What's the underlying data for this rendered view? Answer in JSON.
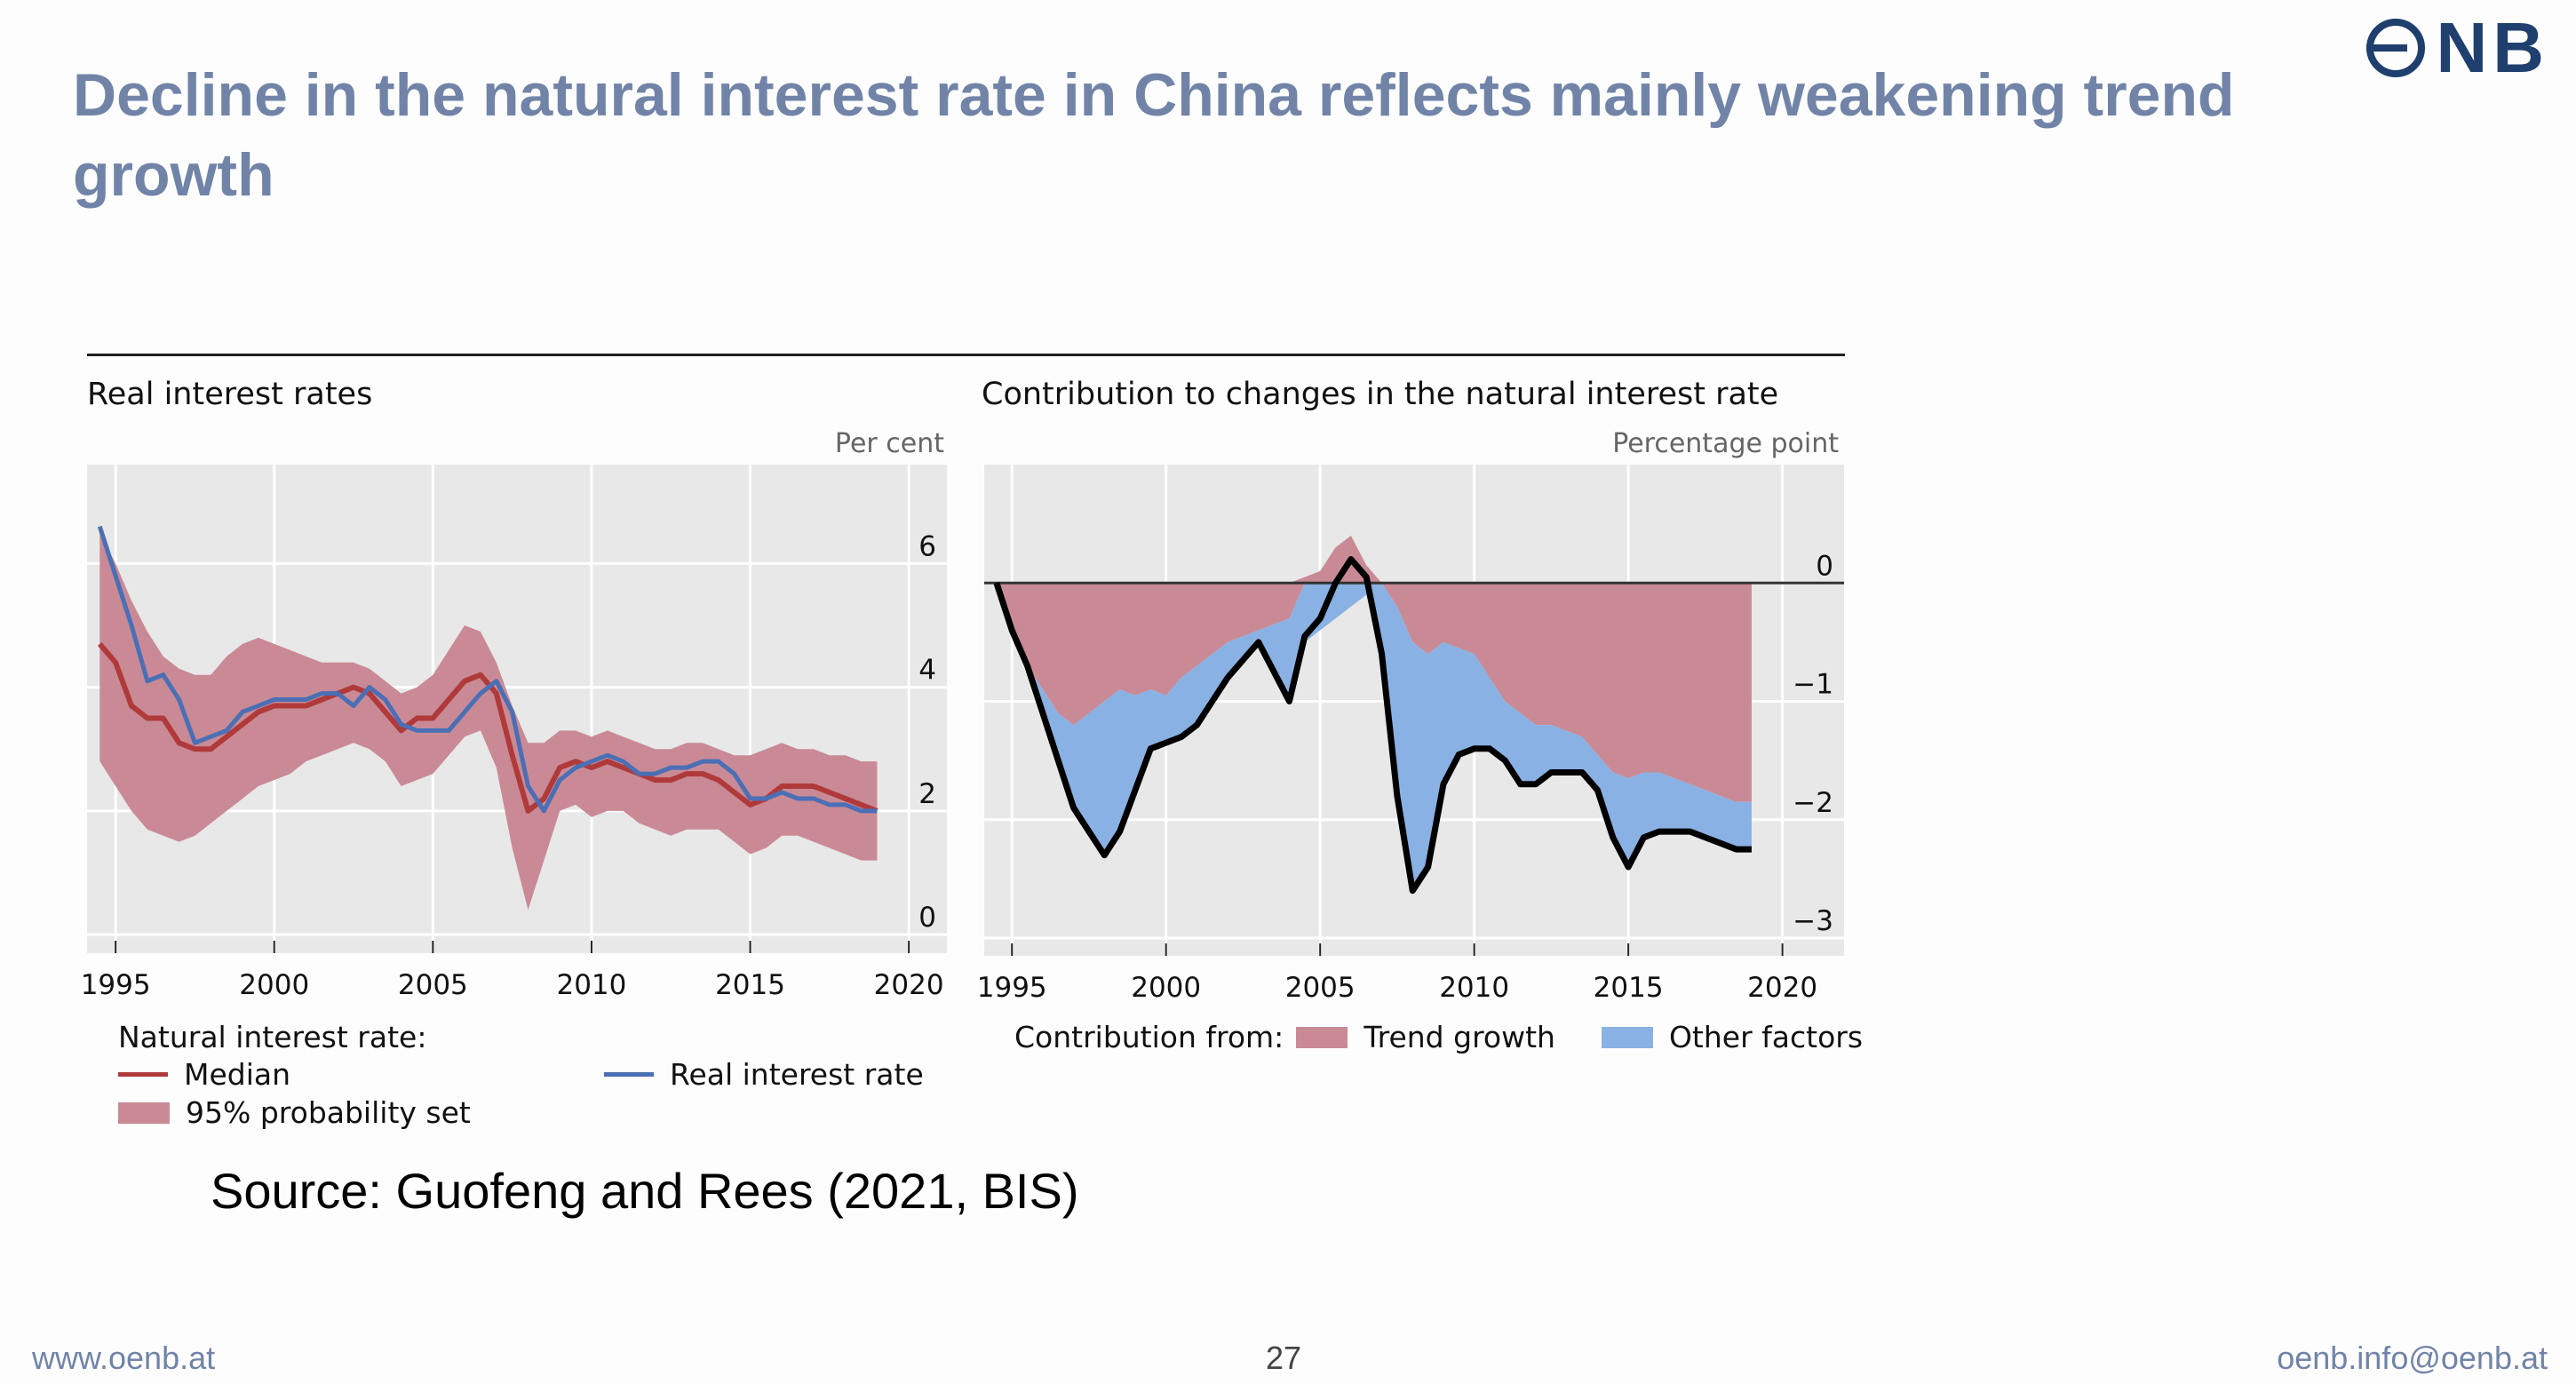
{
  "header": {
    "title": "Decline in the natural interest rate in China reflects mainly weakening trend growth",
    "logo_text": "NB"
  },
  "chart_data": [
    {
      "type": "line",
      "title": "Real interest rates",
      "unit": "Per cent",
      "xlim": [
        1994.1,
        2021.2
      ],
      "ylim": [
        -0.3,
        7.6
      ],
      "xticks": [
        1995,
        2000,
        2005,
        2010,
        2015,
        2020
      ],
      "yticks": [
        0,
        2,
        4,
        6
      ],
      "grid": true,
      "legend_heading": "Natural interest rate:",
      "series": [
        {
          "name": "Median",
          "color": "#b03a3a",
          "x": [
            1994.5,
            1995,
            1995.5,
            1996,
            1996.5,
            1997,
            1997.5,
            1998,
            1998.5,
            1999,
            1999.5,
            2000,
            2000.5,
            2001,
            2001.5,
            2002,
            2002.5,
            2003,
            2003.5,
            2004,
            2004.5,
            2005,
            2005.5,
            2006,
            2006.5,
            2007,
            2007.5,
            2008,
            2008.5,
            2009,
            2009.5,
            2010,
            2010.5,
            2011,
            2011.5,
            2012,
            2012.5,
            2013,
            2013.5,
            2014,
            2014.5,
            2015,
            2015.5,
            2016,
            2016.5,
            2017,
            2017.5,
            2018,
            2018.5,
            2019
          ],
          "values": [
            4.7,
            4.4,
            3.7,
            3.5,
            3.5,
            3.1,
            3.0,
            3.0,
            3.2,
            3.4,
            3.6,
            3.7,
            3.7,
            3.7,
            3.8,
            3.9,
            4.0,
            3.9,
            3.6,
            3.3,
            3.5,
            3.5,
            3.8,
            4.1,
            4.2,
            3.9,
            2.9,
            2.0,
            2.2,
            2.7,
            2.8,
            2.7,
            2.8,
            2.7,
            2.6,
            2.5,
            2.5,
            2.6,
            2.6,
            2.5,
            2.3,
            2.1,
            2.2,
            2.4,
            2.4,
            2.4,
            2.3,
            2.2,
            2.1,
            2.0
          ]
        },
        {
          "name": "Real interest rate",
          "color": "#4a6fb5",
          "x": [
            1994.5,
            1995,
            1995.5,
            1996,
            1996.5,
            1997,
            1997.5,
            1998,
            1998.5,
            1999,
            1999.5,
            2000,
            2000.5,
            2001,
            2001.5,
            2002,
            2002.5,
            2003,
            2003.5,
            2004,
            2004.5,
            2005,
            2005.5,
            2006,
            2006.5,
            2007,
            2007.5,
            2008,
            2008.5,
            2009,
            2009.5,
            2010,
            2010.5,
            2011,
            2011.5,
            2012,
            2012.5,
            2013,
            2013.5,
            2014,
            2014.5,
            2015,
            2015.5,
            2016,
            2016.5,
            2017,
            2017.5,
            2018,
            2018.5,
            2019
          ],
          "values": [
            6.6,
            5.8,
            5.0,
            4.1,
            4.2,
            3.8,
            3.1,
            3.2,
            3.3,
            3.6,
            3.7,
            3.8,
            3.8,
            3.8,
            3.9,
            3.9,
            3.7,
            4.0,
            3.8,
            3.4,
            3.3,
            3.3,
            3.3,
            3.6,
            3.9,
            4.1,
            3.6,
            2.4,
            2.0,
            2.5,
            2.7,
            2.8,
            2.9,
            2.8,
            2.6,
            2.6,
            2.7,
            2.7,
            2.8,
            2.8,
            2.6,
            2.2,
            2.2,
            2.3,
            2.2,
            2.2,
            2.1,
            2.1,
            2.0,
            2.0
          ]
        },
        {
          "name": "95% probability set",
          "color": "#c98a96",
          "x": [
            1994.5,
            1995,
            1995.5,
            1996,
            1996.5,
            1997,
            1997.5,
            1998,
            1998.5,
            1999,
            1999.5,
            2000,
            2000.5,
            2001,
            2001.5,
            2002,
            2002.5,
            2003,
            2003.5,
            2004,
            2004.5,
            2005,
            2005.5,
            2006,
            2006.5,
            2007,
            2007.5,
            2008,
            2008.5,
            2009,
            2009.5,
            2010,
            2010.5,
            2011,
            2011.5,
            2012,
            2012.5,
            2013,
            2013.5,
            2014,
            2014.5,
            2015,
            2015.5,
            2016,
            2016.5,
            2017,
            2017.5,
            2018,
            2018.5,
            2019
          ],
          "upper": [
            6.5,
            6.0,
            5.4,
            4.9,
            4.5,
            4.3,
            4.2,
            4.2,
            4.5,
            4.7,
            4.8,
            4.7,
            4.6,
            4.5,
            4.4,
            4.4,
            4.4,
            4.3,
            4.1,
            3.9,
            4.0,
            4.2,
            4.6,
            5.0,
            4.9,
            4.4,
            3.7,
            3.1,
            3.1,
            3.3,
            3.3,
            3.2,
            3.3,
            3.2,
            3.1,
            3.0,
            3.0,
            3.1,
            3.1,
            3.0,
            2.9,
            2.9,
            3.0,
            3.1,
            3.0,
            3.0,
            2.9,
            2.9,
            2.8,
            2.8
          ],
          "lower": [
            2.8,
            2.4,
            2.0,
            1.7,
            1.6,
            1.5,
            1.6,
            1.8,
            2.0,
            2.2,
            2.4,
            2.5,
            2.6,
            2.8,
            2.9,
            3.0,
            3.1,
            3.0,
            2.8,
            2.4,
            2.5,
            2.6,
            2.9,
            3.2,
            3.3,
            2.7,
            1.4,
            0.4,
            1.2,
            2.0,
            2.1,
            1.9,
            2.0,
            2.0,
            1.8,
            1.7,
            1.6,
            1.7,
            1.7,
            1.7,
            1.5,
            1.3,
            1.4,
            1.6,
            1.6,
            1.5,
            1.4,
            1.3,
            1.2,
            1.2
          ]
        }
      ]
    },
    {
      "type": "area",
      "title": "Contribution to changes in the natural interest rate",
      "unit": "Percentage point",
      "xlim": [
        1994.1,
        2022.0
      ],
      "ylim": [
        -3.15,
        1.0
      ],
      "xticks": [
        1995,
        2000,
        2005,
        2010,
        2015,
        2020
      ],
      "yticks": [
        0,
        -1,
        -2,
        -3
      ],
      "grid": true,
      "legend_heading": "Contribution from:",
      "x": [
        1994.5,
        1995,
        1995.5,
        1996,
        1996.5,
        1997,
        1997.5,
        1998,
        1998.5,
        1999,
        1999.5,
        2000,
        2000.5,
        2001,
        2001.5,
        2002,
        2002.5,
        2003,
        2003.5,
        2004,
        2004.5,
        2005,
        2005.5,
        2006,
        2006.5,
        2007,
        2007.5,
        2008,
        2008.5,
        2009,
        2009.5,
        2010,
        2010.5,
        2011,
        2011.5,
        2012,
        2012.5,
        2013,
        2013.5,
        2014,
        2014.5,
        2015,
        2015.5,
        2016,
        2016.5,
        2017,
        2017.5,
        2018,
        2018.5,
        2019
      ],
      "series": [
        {
          "name": "Trend growth",
          "color": "#c98a96",
          "values": [
            0,
            -0.4,
            -0.7,
            -0.9,
            -1.1,
            -1.2,
            -1.1,
            -1.0,
            -0.9,
            -0.95,
            -0.9,
            -0.95,
            -0.8,
            -0.7,
            -0.6,
            -0.5,
            -0.45,
            -0.4,
            -0.35,
            -0.3,
            0.05,
            0.1,
            0.3,
            0.4,
            0.15,
            0,
            -0.2,
            -0.5,
            -0.6,
            -0.5,
            -0.55,
            -0.6,
            -0.8,
            -1.0,
            -1.1,
            -1.2,
            -1.2,
            -1.25,
            -1.3,
            -1.45,
            -1.6,
            -1.65,
            -1.6,
            -1.6,
            -1.65,
            -1.7,
            -1.75,
            -1.8,
            -1.85,
            -1.85
          ]
        },
        {
          "name": "Other factors",
          "color": "#8ab1e3",
          "values": [
            0,
            0,
            0,
            -0.2,
            -0.4,
            -0.7,
            -1.0,
            -1.3,
            -1.2,
            -0.8,
            -0.5,
            -0.4,
            -0.5,
            -0.5,
            -0.4,
            -0.3,
            -0.2,
            -0.1,
            -0.4,
            -0.7,
            -0.5,
            -0.4,
            -0.3,
            -0.2,
            -0.1,
            -0.6,
            -1.6,
            -2.1,
            -1.8,
            -1.2,
            -0.9,
            -0.8,
            -0.6,
            -0.5,
            -0.6,
            -0.5,
            -0.4,
            -0.35,
            -0.3,
            -0.3,
            -0.55,
            -0.75,
            -0.55,
            -0.5,
            -0.45,
            -0.4,
            -0.4,
            -0.4,
            -0.4,
            -0.4
          ]
        }
      ],
      "total": [
        0,
        -0.4,
        -0.7,
        -1.1,
        -1.5,
        -1.9,
        -2.1,
        -2.3,
        -2.1,
        -1.75,
        -1.4,
        -1.35,
        -1.3,
        -1.2,
        -1.0,
        -0.8,
        -0.65,
        -0.5,
        -0.75,
        -1.0,
        -0.45,
        -0.3,
        0,
        0.2,
        0.05,
        -0.6,
        -1.8,
        -2.6,
        -2.4,
        -1.7,
        -1.45,
        -1.4,
        -1.4,
        -1.5,
        -1.7,
        -1.7,
        -1.6,
        -1.6,
        -1.6,
        -1.75,
        -2.15,
        -2.4,
        -2.15,
        -2.1,
        -2.1,
        -2.1,
        -2.15,
        -2.2,
        -2.25,
        -2.25
      ],
      "total_color": "#000000",
      "zero_line": true
    }
  ],
  "left_panel": {
    "title": "Real interest rates",
    "unit": "Per cent",
    "legend": {
      "heading": "Natural interest rate:",
      "median": "Median",
      "band": "95% probability set",
      "real": "Real interest rate"
    }
  },
  "right_panel": {
    "title": "Contribution to changes in the natural interest rate",
    "unit": "Percentage point",
    "legend": {
      "heading": "Contribution from:",
      "trend": "Trend growth",
      "other": "Other factors"
    }
  },
  "source": "Source: Guofeng and Rees (2021, BIS)",
  "footer": {
    "left": "www.oenb.at",
    "page": "27",
    "right": "oenb.info@oenb.at"
  },
  "colors": {
    "title": "#7184a8",
    "plot_bg": "#e8e8e8",
    "median": "#b03a3a",
    "real": "#4a6fb5",
    "band": "#c98a96",
    "trend": "#c98a96",
    "other": "#8ab1e3"
  }
}
